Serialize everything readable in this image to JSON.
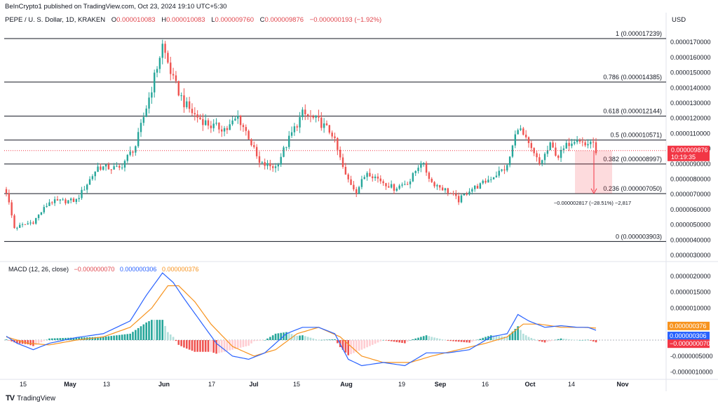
{
  "header": {
    "publish": "BeInCrypto1 published on TradingView.com, Oct 23, 2024 19:10 UTC+5:30",
    "symbol": "PEPE / U. S. Dollar, 1D, KRAKEN",
    "ohlc_o_label": "O",
    "ohlc_o": "0.000010083",
    "ohlc_h_label": "H",
    "ohlc_h": "0.000010083",
    "ohlc_l_label": "L",
    "ohlc_l": "0.000009760",
    "ohlc_c_label": "C",
    "ohlc_c": "0.000009876",
    "change": "−0.000000193 (−1.92%)",
    "currency": "USD"
  },
  "macd_legend": {
    "label": "MACD (12, 26, close)",
    "hist": "−0.000000070",
    "macd": "0.000000306",
    "signal": "0.000000376"
  },
  "brand": {
    "logo": "TV",
    "name": "TradingView"
  },
  "colors": {
    "up": "#26a69a",
    "down": "#ef5350",
    "macd": "#2962ff",
    "signal": "#f7931e"
  },
  "chart_data": [
    {
      "type": "candlestick",
      "title": "PEPE / U. S. Dollar, 1D, KRAKEN",
      "x_axis_labels": [
        "15",
        "May",
        "13",
        "Jun",
        "17",
        "Jul",
        "15",
        "Aug",
        "19",
        "Sep",
        "16",
        "Oct",
        "14",
        "Nov"
      ],
      "y_axis_labels": [
        "0.0000030000",
        "0.0000040000",
        "0.0000050000",
        "0.0000060000",
        "0.0000070000",
        "0.0000080000",
        "0.0000090000",
        "0.0000100000",
        "0.0000110000",
        "0.0000120000",
        "0.0000130000",
        "0.0000140000",
        "0.0000150000",
        "0.0000160000",
        "0.0000170000"
      ],
      "ylim": [
        2.5e-06,
        1.78e-05
      ],
      "close_anchors": [
        {
          "t": 0,
          "v": 7.2e-06
        },
        {
          "t": 3,
          "v": 4.8e-06
        },
        {
          "t": 10,
          "v": 5.2e-06
        },
        {
          "t": 16,
          "v": 6.5e-06
        },
        {
          "t": 26,
          "v": 6.6e-06
        },
        {
          "t": 34,
          "v": 8.8e-06
        },
        {
          "t": 42,
          "v": 8.7e-06
        },
        {
          "t": 48,
          "v": 1.02e-05
        },
        {
          "t": 54,
          "v": 1.4e-05
        },
        {
          "t": 58,
          "v": 1.68e-05
        },
        {
          "t": 62,
          "v": 1.45e-05
        },
        {
          "t": 66,
          "v": 1.3e-05
        },
        {
          "t": 70,
          "v": 1.22e-05
        },
        {
          "t": 76,
          "v": 1.15e-05
        },
        {
          "t": 82,
          "v": 1.13e-05
        },
        {
          "t": 86,
          "v": 1.21e-05
        },
        {
          "t": 90,
          "v": 1.08e-05
        },
        {
          "t": 94,
          "v": 9e-06
        },
        {
          "t": 100,
          "v": 8.8e-06
        },
        {
          "t": 106,
          "v": 1.1e-05
        },
        {
          "t": 110,
          "v": 1.23e-05
        },
        {
          "t": 116,
          "v": 1.18e-05
        },
        {
          "t": 121,
          "v": 1.1e-05
        },
        {
          "t": 126,
          "v": 8.2e-06
        },
        {
          "t": 130,
          "v": 7.2e-06
        },
        {
          "t": 134,
          "v": 8.5e-06
        },
        {
          "t": 140,
          "v": 7.8e-06
        },
        {
          "t": 144,
          "v": 7.4e-06
        },
        {
          "t": 150,
          "v": 7.9e-06
        },
        {
          "t": 154,
          "v": 9.2e-06
        },
        {
          "t": 158,
          "v": 7.8e-06
        },
        {
          "t": 164,
          "v": 7.2e-06
        },
        {
          "t": 168,
          "v": 6.6e-06
        },
        {
          "t": 172,
          "v": 7.3e-06
        },
        {
          "t": 176,
          "v": 7.6e-06
        },
        {
          "t": 180,
          "v": 8.1e-06
        },
        {
          "t": 186,
          "v": 8.8e-06
        },
        {
          "t": 190,
          "v": 1.15e-05
        },
        {
          "t": 194,
          "v": 1.02e-05
        },
        {
          "t": 198,
          "v": 9e-06
        },
        {
          "t": 202,
          "v": 1.02e-05
        },
        {
          "t": 205,
          "v": 9.5e-06
        },
        {
          "t": 209,
          "v": 1.04e-05
        },
        {
          "t": 212,
          "v": 1.08e-05
        },
        {
          "t": 215,
          "v": 1.02e-05
        },
        {
          "t": 217,
          "v": 1.05e-05
        },
        {
          "t": 219,
          "v": 9.9e-06
        }
      ],
      "fibonacci_levels": [
        {
          "ratio": "1",
          "price": 1.7239e-05,
          "label": "1 (0.000017239)"
        },
        {
          "ratio": "0.786",
          "price": 1.4385e-05,
          "label": "0.786 (0.000014385)"
        },
        {
          "ratio": "0.618",
          "price": 1.2144e-05,
          "label": "0.618 (0.000012144)"
        },
        {
          "ratio": "0.5",
          "price": 1.0571e-05,
          "label": "0.5 (0.000010571)"
        },
        {
          "ratio": "0.382",
          "price": 8.997e-06,
          "label": "0.382 (0.000008997)"
        },
        {
          "ratio": "0.236",
          "price": 7.05e-06,
          "label": "0.236 (0.000007050)"
        },
        {
          "ratio": "0",
          "price": 3.903e-06,
          "label": "0 (0.000003903)"
        }
      ],
      "last_price": "0.000009876",
      "countdown": "10:19:35",
      "projection": {
        "from": 9.876e-06,
        "to": 7.059e-06,
        "label": "−0.000002817 (−28.51%) −2,817"
      }
    },
    {
      "type": "macd",
      "title": "MACD (12, 26, close)",
      "y_axis_labels": [
        "0.0000020000",
        "0.0000015000",
        "0.0000010000",
        "-0.0000005000",
        "-0.0000010000"
      ],
      "ylim": [
        -1.2e-06,
        2.3e-06
      ],
      "macd_anchors": [
        {
          "t": 0,
          "v": 1.2e-07
        },
        {
          "t": 4,
          "v": -1e-07
        },
        {
          "t": 10,
          "v": -3e-07
        },
        {
          "t": 16,
          "v": -1e-07
        },
        {
          "t": 26,
          "v": 8e-08
        },
        {
          "t": 36,
          "v": 2e-07
        },
        {
          "t": 46,
          "v": 6e-07
        },
        {
          "t": 52,
          "v": 1.4e-06
        },
        {
          "t": 58,
          "v": 2.1e-06
        },
        {
          "t": 62,
          "v": 1.8e-06
        },
        {
          "t": 66,
          "v": 1.3e-06
        },
        {
          "t": 72,
          "v": 6e-07
        },
        {
          "t": 78,
          "v": -1e-07
        },
        {
          "t": 84,
          "v": -5e-07
        },
        {
          "t": 90,
          "v": -6e-07
        },
        {
          "t": 96,
          "v": -4e-07
        },
        {
          "t": 104,
          "v": 2e-07
        },
        {
          "t": 110,
          "v": 4e-07
        },
        {
          "t": 116,
          "v": 4e-07
        },
        {
          "t": 122,
          "v": 2e-07
        },
        {
          "t": 127,
          "v": -6e-07
        },
        {
          "t": 132,
          "v": -8e-07
        },
        {
          "t": 140,
          "v": -7e-07
        },
        {
          "t": 148,
          "v": -8e-07
        },
        {
          "t": 156,
          "v": -4e-07
        },
        {
          "t": 164,
          "v": -4e-07
        },
        {
          "t": 172,
          "v": -3e-07
        },
        {
          "t": 180,
          "v": 1e-07
        },
        {
          "t": 186,
          "v": 2e-07
        },
        {
          "t": 190,
          "v": 8e-07
        },
        {
          "t": 194,
          "v": 6e-07
        },
        {
          "t": 200,
          "v": 4e-07
        },
        {
          "t": 206,
          "v": 4.5e-07
        },
        {
          "t": 212,
          "v": 4e-07
        },
        {
          "t": 216,
          "v": 4e-07
        },
        {
          "t": 219,
          "v": 3.06e-07
        }
      ],
      "signal_anchors": [
        {
          "t": 0,
          "v": 1e-07
        },
        {
          "t": 8,
          "v": -1e-07
        },
        {
          "t": 16,
          "v": -1.5e-07
        },
        {
          "t": 26,
          "v": 0.0
        },
        {
          "t": 36,
          "v": 1e-07
        },
        {
          "t": 46,
          "v": 4e-07
        },
        {
          "t": 54,
          "v": 1e-06
        },
        {
          "t": 60,
          "v": 1.7e-06
        },
        {
          "t": 64,
          "v": 1.7e-06
        },
        {
          "t": 70,
          "v": 1.2e-06
        },
        {
          "t": 76,
          "v": 5e-07
        },
        {
          "t": 84,
          "v": -2e-07
        },
        {
          "t": 92,
          "v": -5e-07
        },
        {
          "t": 100,
          "v": -3e-07
        },
        {
          "t": 108,
          "v": 2e-07
        },
        {
          "t": 116,
          "v": 4e-07
        },
        {
          "t": 124,
          "v": 1e-07
        },
        {
          "t": 132,
          "v": -5e-07
        },
        {
          "t": 140,
          "v": -7e-07
        },
        {
          "t": 150,
          "v": -7e-07
        },
        {
          "t": 158,
          "v": -5e-07
        },
        {
          "t": 168,
          "v": -3e-07
        },
        {
          "t": 178,
          "v": -1e-07
        },
        {
          "t": 186,
          "v": 1e-07
        },
        {
          "t": 192,
          "v": 5e-07
        },
        {
          "t": 198,
          "v": 5e-07
        },
        {
          "t": 206,
          "v": 4e-07
        },
        {
          "t": 214,
          "v": 4e-07
        },
        {
          "t": 219,
          "v": 3.76e-07
        }
      ],
      "histogram_last": -7e-08,
      "macd_last": 3.06e-07,
      "signal_last": 3.76e-07
    }
  ]
}
